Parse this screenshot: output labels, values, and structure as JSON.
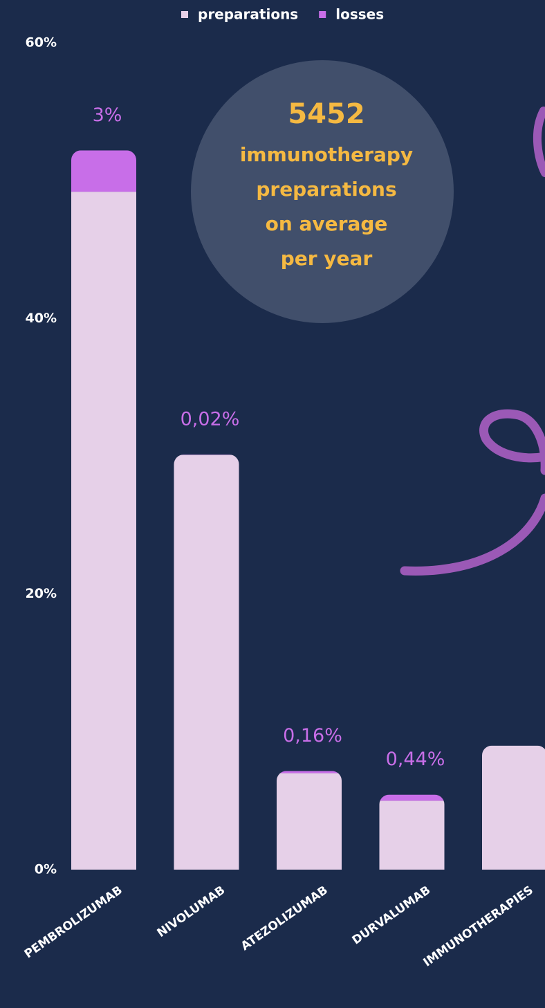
{
  "chart_data": {
    "type": "stacked_bar",
    "categories": [
      "PEMBROLIZUMAB",
      "NIVOLUMAB",
      "ATEZOLIZUMAB",
      "DURVALUMAB",
      "IMMUNOTHERAPIES"
    ],
    "series": [
      {
        "name": "preparations",
        "color": "#e6d0e8",
        "values": [
          49.2,
          30.1,
          7.0,
          5.0,
          9.0
        ]
      },
      {
        "name": "losses",
        "color": "#c86ee8",
        "values": [
          3,
          0.02,
          0.16,
          0.44,
          null
        ],
        "value_labels": [
          "3%",
          "0,02%",
          "0,16%",
          "0,44%",
          null
        ]
      }
    ],
    "ylim": [
      0,
      60
    ],
    "yticks": [
      {
        "value": 0,
        "label": "0%"
      },
      {
        "value": 20,
        "label": "20%"
      },
      {
        "value": 40,
        "label": "40%"
      },
      {
        "value": 60,
        "label": "60%"
      }
    ],
    "grid": false,
    "legend": "top",
    "annotation": {
      "number": "5452",
      "lines": [
        "immunotherapy",
        "preparations",
        "on average",
        "per year"
      ]
    }
  }
}
